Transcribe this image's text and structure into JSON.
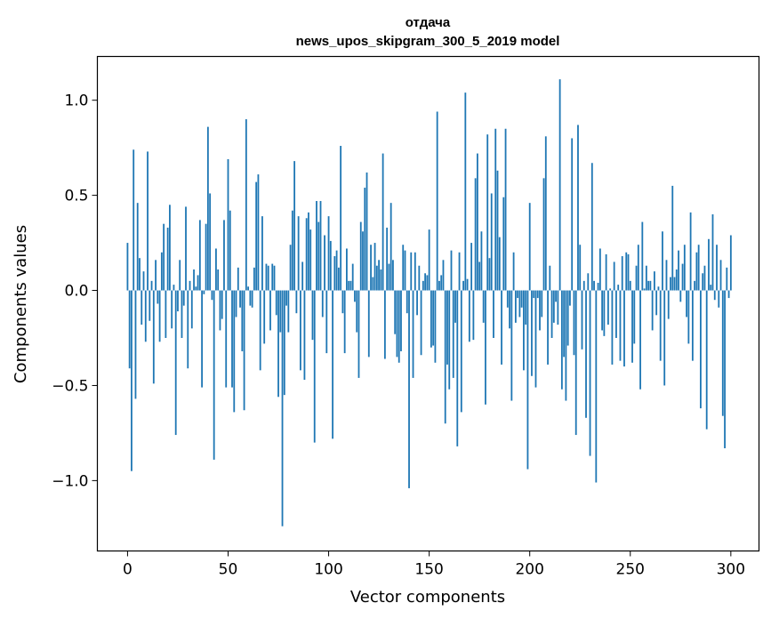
{
  "chart_data": {
    "type": "bar",
    "title": "отдача",
    "subtitle": "news_upos_skipgram_300_5_2019 model",
    "xlabel": "Vector components",
    "ylabel": "Components values",
    "xlim": [
      -15,
      314
    ],
    "ylim": [
      -1.37,
      1.23
    ],
    "xticks": [
      0,
      50,
      100,
      150,
      200,
      250,
      300
    ],
    "xtick_labels": [
      "0",
      "50",
      "100",
      "150",
      "200",
      "250",
      "300"
    ],
    "yticks": [
      -1.0,
      -0.5,
      0.0,
      0.5,
      1.0
    ],
    "ytick_labels": [
      "−1.0",
      "−0.5",
      "0.0",
      "0.5",
      "1.0"
    ],
    "grid": false,
    "bar_color": "#1f77b4",
    "values": [
      0.25,
      -0.41,
      -0.95,
      0.74,
      -0.57,
      0.46,
      0.17,
      -0.18,
      0.1,
      -0.27,
      0.73,
      -0.16,
      0.05,
      -0.49,
      0.16,
      -0.07,
      -0.27,
      0.2,
      0.35,
      -0.25,
      0.33,
      0.45,
      -0.2,
      0.03,
      -0.76,
      -0.11,
      0.16,
      -0.25,
      -0.08,
      0.44,
      -0.41,
      0.05,
      -0.2,
      0.11,
      0.02,
      0.08,
      0.37,
      -0.51,
      -0.02,
      0.35,
      0.86,
      0.51,
      -0.05,
      -0.89,
      0.22,
      0.11,
      -0.21,
      -0.15,
      0.37,
      -0.51,
      0.69,
      0.42,
      -0.51,
      -0.64,
      -0.14,
      0.12,
      -0.09,
      -0.32,
      -0.63,
      0.9,
      0.02,
      -0.08,
      -0.09,
      0.12,
      0.57,
      0.61,
      -0.42,
      0.39,
      -0.28,
      0.14,
      0.13,
      -0.21,
      0.14,
      0.13,
      -0.13,
      -0.56,
      -0.22,
      -1.24,
      -0.55,
      -0.08,
      -0.22,
      0.24,
      0.42,
      0.68,
      -0.12,
      0.39,
      -0.42,
      0.15,
      -0.47,
      0.38,
      0.41,
      0.32,
      -0.26,
      -0.8,
      0.47,
      0.36,
      0.47,
      -0.14,
      0.29,
      -0.33,
      0.39,
      0.26,
      -0.78,
      0.18,
      0.21,
      0.12,
      0.76,
      -0.12,
      -0.33,
      0.22,
      0.05,
      0.05,
      0.14,
      -0.06,
      -0.22,
      -0.46,
      0.36,
      0.31,
      0.54,
      0.62,
      -0.35,
      0.24,
      0.07,
      0.25,
      0.13,
      0.16,
      0.11,
      0.72,
      -0.36,
      0.33,
      0.14,
      0.46,
      0.16,
      -0.23,
      -0.35,
      -0.38,
      -0.32,
      0.24,
      0.21,
      -0.12,
      -1.04,
      0.2,
      -0.46,
      0.2,
      -0.13,
      0.13,
      -0.34,
      0.05,
      0.09,
      0.08,
      0.32,
      -0.3,
      -0.29,
      -0.38,
      0.94,
      0.05,
      0.08,
      0.16,
      -0.7,
      -0.39,
      -0.52,
      0.21,
      -0.46,
      -0.17,
      -0.82,
      0.2,
      -0.64,
      0.05,
      1.04,
      0.06,
      -0.27,
      0.25,
      -0.26,
      0.59,
      0.72,
      0.15,
      0.31,
      -0.17,
      -0.6,
      0.82,
      0.17,
      0.51,
      -0.25,
      0.85,
      0.63,
      0.28,
      -0.39,
      0.49,
      0.85,
      -0.09,
      -0.2,
      -0.58,
      0.2,
      -0.17,
      -0.04,
      -0.14,
      -0.09,
      -0.42,
      -0.18,
      -0.94,
      0.46,
      -0.45,
      -0.04,
      -0.51,
      -0.04,
      -0.21,
      -0.14,
      0.59,
      0.81,
      -0.39,
      0.13,
      -0.25,
      -0.17,
      -0.06,
      -0.18,
      1.11,
      -0.52,
      -0.35,
      -0.58,
      -0.29,
      -0.08,
      0.8,
      -0.34,
      -0.76,
      0.87,
      0.24,
      -0.31,
      0.05,
      -0.67,
      0.09,
      -0.87,
      0.67,
      0.05,
      -1.01,
      0.04,
      0.22,
      -0.21,
      -0.24,
      0.19,
      -0.18,
      0.01,
      -0.39,
      0.15,
      -0.25,
      0.03,
      -0.37,
      0.18,
      -0.4,
      0.2,
      0.19,
      0.05,
      -0.38,
      -0.28,
      0.13,
      0.24,
      -0.52,
      0.36,
      0.01,
      0.13,
      0.05,
      0.05,
      -0.21,
      0.1,
      -0.13,
      0.02,
      -0.37,
      0.31,
      -0.5,
      0.16,
      -0.15,
      0.07,
      0.55,
      0.07,
      0.11,
      0.21,
      -0.06,
      0.14,
      0.24,
      -0.14,
      -0.28,
      0.41,
      -0.37,
      0.05,
      0.2,
      0.24,
      -0.62,
      0.09,
      0.13,
      -0.73,
      0.27,
      0.03,
      0.4,
      -0.05,
      0.24,
      -0.09,
      0.16,
      -0.66,
      -0.83,
      0.12,
      -0.04,
      0.29
    ]
  }
}
